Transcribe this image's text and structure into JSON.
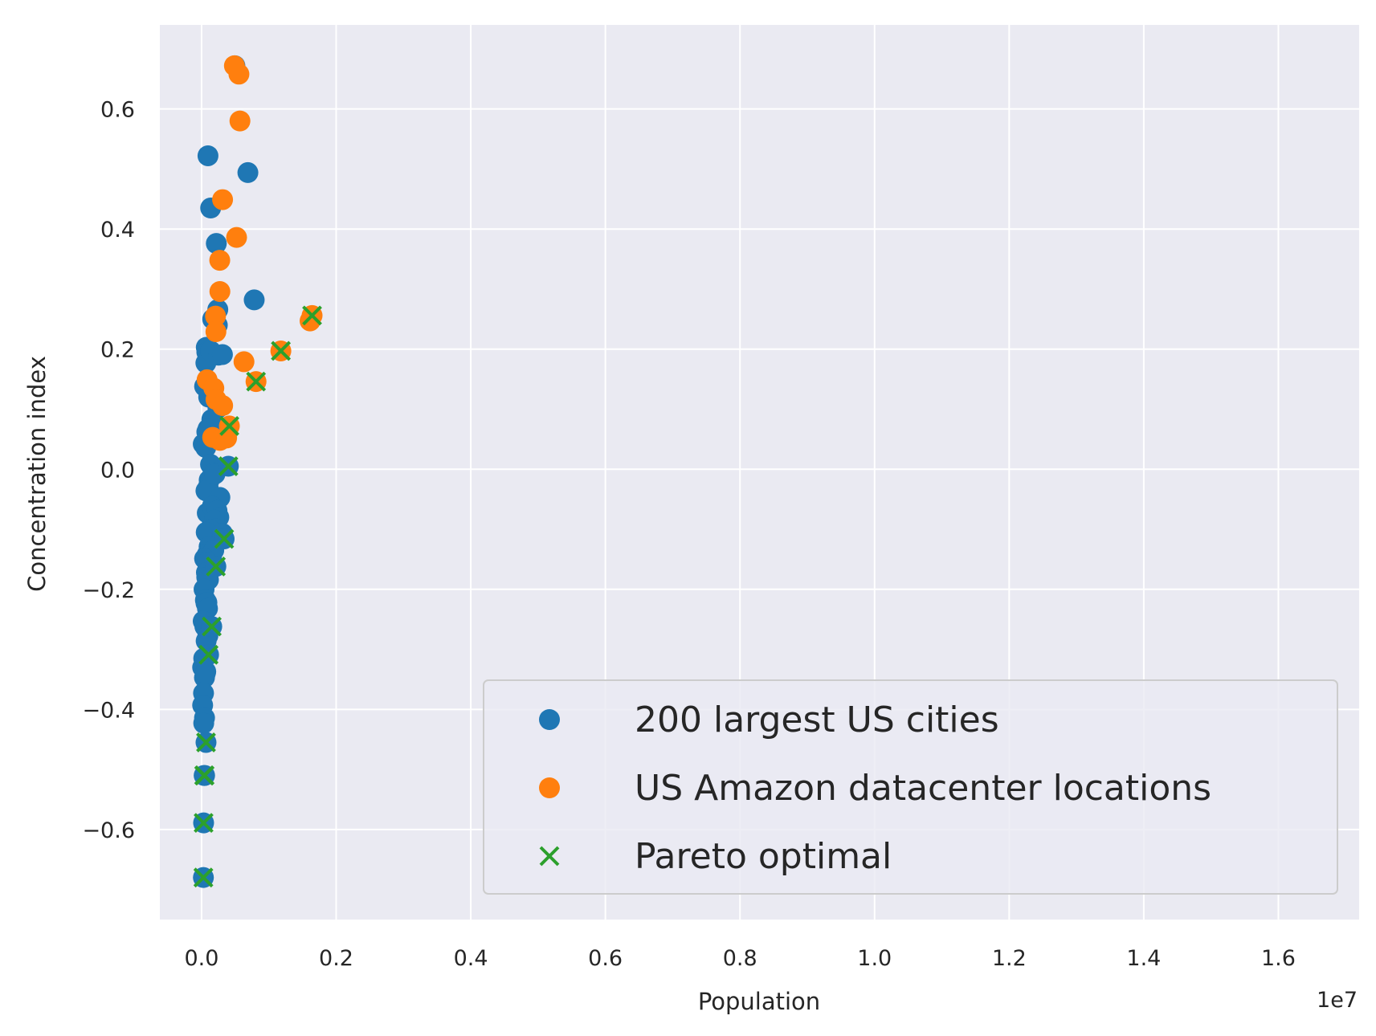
{
  "chart_data": {
    "type": "scatter",
    "title": "",
    "xlabel": "Population",
    "ylabel": "Concentration index",
    "x_offset_text": "1e7",
    "x_ticks": [
      0.0,
      0.2,
      0.4,
      0.6,
      0.8,
      1.0,
      1.2,
      1.4,
      1.6
    ],
    "x_tick_labels": [
      "0.0",
      "0.2",
      "0.4",
      "0.6",
      "0.8",
      "1.0",
      "1.2",
      "1.4",
      "1.6"
    ],
    "y_ticks": [
      -0.6,
      -0.4,
      -0.2,
      0.0,
      0.2,
      0.4,
      0.6
    ],
    "y_tick_labels": [
      "−0.6",
      "−0.4",
      "−0.2",
      "0.0",
      "0.2",
      "0.4",
      "0.6"
    ],
    "xlim": [
      -0.062,
      1.72
    ],
    "ylim": [
      -0.75,
      0.74
    ],
    "grid": true,
    "legend_position": "lower right",
    "colors": {
      "background": "#eaeaf2",
      "grid": "#ffffff",
      "cities": "#1f77b4",
      "amazon": "#ff7f0e",
      "pareto": "#2ca02c"
    },
    "series": [
      {
        "name": "200 largest US cities",
        "marker": "circle",
        "color": "#1f77b4",
        "points": [
          [
            0.0495,
            0.672
          ],
          [
            0.0688,
            0.494
          ],
          [
            0.0095,
            0.522
          ],
          [
            0.0135,
            0.435
          ],
          [
            0.0782,
            0.282
          ],
          [
            0.0219,
            0.376
          ],
          [
            0.0241,
            0.266
          ],
          [
            0.0234,
            0.24
          ],
          [
            0.0165,
            0.25
          ],
          [
            0.007,
            0.203
          ],
          [
            0.0078,
            0.195
          ],
          [
            0.0064,
            0.177
          ],
          [
            0.0134,
            0.197
          ],
          [
            0.0251,
            0.19
          ],
          [
            0.031,
            0.191
          ],
          [
            0.0045,
            0.138
          ],
          [
            0.0106,
            0.12
          ],
          [
            0.0152,
            0.083
          ],
          [
            0.0244,
            0.102
          ],
          [
            0.0217,
            0.063
          ],
          [
            0.0095,
            0.067
          ],
          [
            0.0078,
            0.062
          ],
          [
            0.0025,
            0.042
          ],
          [
            0.0062,
            0.036
          ],
          [
            0.0149,
            0.05
          ],
          [
            0.0133,
            0.008
          ],
          [
            0.0113,
            -0.018
          ],
          [
            0.0097,
            -0.03
          ],
          [
            0.0065,
            -0.036
          ],
          [
            0.019,
            -0.006
          ],
          [
            0.0199,
            -0.008
          ],
          [
            0.0272,
            -0.047
          ],
          [
            0.0085,
            -0.073
          ],
          [
            0.0159,
            -0.062
          ],
          [
            0.0229,
            -0.069
          ],
          [
            0.0256,
            -0.08
          ],
          [
            0.0192,
            -0.085
          ],
          [
            0.0213,
            -0.099
          ],
          [
            0.0122,
            -0.1
          ],
          [
            0.0124,
            -0.112
          ],
          [
            0.0069,
            -0.105
          ],
          [
            0.0112,
            -0.129
          ],
          [
            0.0084,
            -0.142
          ],
          [
            0.015,
            -0.143
          ],
          [
            0.0181,
            -0.135
          ],
          [
            0.0045,
            -0.149
          ],
          [
            0.0084,
            -0.155
          ],
          [
            0.0072,
            -0.172
          ],
          [
            0.0077,
            -0.18
          ],
          [
            0.0102,
            -0.184
          ],
          [
            0.0037,
            -0.2
          ],
          [
            0.0057,
            -0.218
          ],
          [
            0.0066,
            -0.223
          ],
          [
            0.0079,
            -0.222
          ],
          [
            0.0088,
            -0.232
          ],
          [
            0.0024,
            -0.253
          ],
          [
            0.0049,
            -0.262
          ],
          [
            0.0094,
            -0.277
          ],
          [
            0.0068,
            -0.286
          ],
          [
            0.0016,
            -0.33
          ],
          [
            0.0032,
            -0.315
          ],
          [
            0.0043,
            -0.347
          ],
          [
            0.0062,
            -0.337
          ],
          [
            0.0055,
            -0.34
          ],
          [
            0.0029,
            -0.373
          ],
          [
            0.0016,
            -0.393
          ],
          [
            0.0044,
            -0.414
          ],
          [
            0.0032,
            -0.423
          ],
          [
            0.031,
            -0.107
          ],
          [
            0.0335,
            -0.116
          ],
          [
            0.0398,
            0.005
          ],
          [
            0.0151,
            -0.262
          ],
          [
            0.0104,
            -0.309
          ],
          [
            0.0212,
            -0.162
          ],
          [
            0.0066,
            -0.455
          ],
          [
            0.0038,
            -0.51
          ],
          [
            0.0045,
            -0.51
          ],
          [
            0.003,
            -0.589
          ],
          [
            0.0027,
            -0.68
          ]
        ]
      },
      {
        "name": "US Amazon datacenter locations",
        "marker": "circle",
        "color": "#ff7f0e",
        "points": [
          [
            0.0488,
            0.672
          ],
          [
            0.0555,
            0.658
          ],
          [
            0.057,
            0.58
          ],
          [
            0.0312,
            0.449
          ],
          [
            0.052,
            0.386
          ],
          [
            0.027,
            0.348
          ],
          [
            0.0272,
            0.296
          ],
          [
            0.0207,
            0.255
          ],
          [
            0.0213,
            0.229
          ],
          [
            0.063,
            0.179
          ],
          [
            0.0082,
            0.149
          ],
          [
            0.0182,
            0.135
          ],
          [
            0.0215,
            0.116
          ],
          [
            0.0313,
            0.106
          ],
          [
            0.0165,
            0.053
          ],
          [
            0.0273,
            0.048
          ],
          [
            0.0372,
            0.052
          ],
          [
            0.0413,
            0.072
          ],
          [
            0.0809,
            0.146
          ],
          [
            0.1178,
            0.197
          ],
          [
            0.1612,
            0.247
          ],
          [
            0.1642,
            0.256
          ]
        ]
      },
      {
        "name": "Pareto optimal",
        "marker": "x",
        "color": "#2ca02c",
        "points": [
          [
            0.1642,
            0.256
          ],
          [
            0.1178,
            0.197
          ],
          [
            0.0809,
            0.146
          ],
          [
            0.0413,
            0.072
          ],
          [
            0.0398,
            0.005
          ],
          [
            0.0335,
            -0.116
          ],
          [
            0.0212,
            -0.162
          ],
          [
            0.0151,
            -0.262
          ],
          [
            0.0104,
            -0.309
          ],
          [
            0.0066,
            -0.455
          ],
          [
            0.0038,
            -0.51
          ],
          [
            0.0045,
            -0.51
          ],
          [
            0.003,
            -0.589
          ],
          [
            0.0027,
            -0.68
          ]
        ]
      }
    ]
  }
}
